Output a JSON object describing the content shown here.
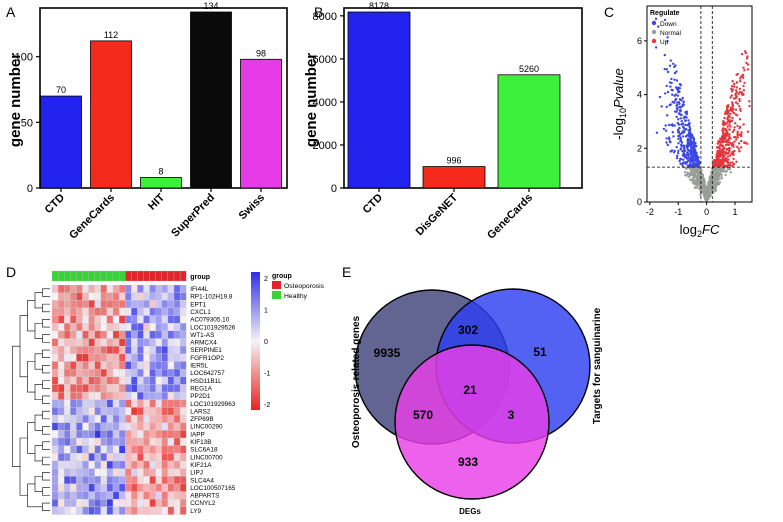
{
  "panel_letters": [
    "A",
    "B",
    "C",
    "D",
    "E"
  ],
  "chart_data": [
    {
      "panel": "A",
      "type": "bar",
      "ylabel": "gene number",
      "categories": [
        "CTD",
        "GeneCards",
        "HIT",
        "SuperPred",
        "Swiss"
      ],
      "values": [
        70,
        112,
        8,
        134,
        98
      ],
      "colors": [
        "#2323f0",
        "#f52a1c",
        "#3cf03c",
        "#0a0a0a",
        "#e83be8"
      ],
      "ylim": [
        0,
        134
      ],
      "yticks": [
        0,
        50,
        100
      ]
    },
    {
      "panel": "B",
      "type": "bar",
      "ylabel": "gene number",
      "categories": [
        "CTD",
        "DisGeNET",
        "GeneCards"
      ],
      "values": [
        8178,
        996,
        5260
      ],
      "colors": [
        "#2323f0",
        "#f52a1c",
        "#3cf03c"
      ],
      "ylim": [
        0,
        8178
      ],
      "yticks": [
        0,
        2000,
        4000,
        6000,
        8000
      ]
    },
    {
      "panel": "C",
      "type": "scatter",
      "xlabel": "log2FC",
      "ylabel": "-log10Pvalue",
      "xlim": [
        -2.1,
        1.6
      ],
      "ylim": [
        0,
        7.3
      ],
      "xticks": [
        -2,
        -1,
        0,
        1
      ],
      "yticks": [
        0,
        2,
        4,
        6
      ],
      "thresholds": {
        "x": [
          -0.2,
          0.2
        ],
        "y": 1.3
      },
      "legend": {
        "title": "Regulate",
        "entries": [
          {
            "label": "Down",
            "color": "#3b46e6"
          },
          {
            "label": "Normal",
            "color": "#9a9e9a"
          },
          {
            "label": "Up",
            "color": "#e6353b"
          }
        ]
      }
    },
    {
      "panel": "D",
      "type": "heatmap",
      "genes": [
        "IFI44L",
        "RP1-102H19.8",
        "EPT1",
        "CXCL1",
        "AC079305.10",
        "LOC101929526",
        "WT1-AS",
        "ARMCX4",
        "SERPINE1",
        "FGFR1OP2",
        "IER5L",
        "LOC642757",
        "HSD11B1L",
        "REG1A",
        "PP2D1",
        "LOC101929963",
        "LARS2",
        "ZFP69B",
        "LINC00290",
        "IAPP",
        "KIF13B",
        "SLC6A18",
        "LINC00700",
        "KIF21A",
        "LIPJ",
        "SLC4A4",
        "LOC100507165",
        "ABPARTS",
        "CCNYL2",
        "LY9"
      ],
      "group_label": "group",
      "groups": [
        {
          "label": "Osteoporosis",
          "color": "#e0262c",
          "samples": 10
        },
        {
          "label": "Healthy",
          "color": "#37d437",
          "samples": 12
        }
      ],
      "colorbar": {
        "ticks": [
          2,
          1,
          0,
          -1,
          -2
        ],
        "low": "#e8231f",
        "mid": "#f7f2f5",
        "high": "#2d2fe8"
      }
    },
    {
      "panel": "E",
      "type": "venn",
      "sets": [
        {
          "label": "Osteoporosis-related genes",
          "color": "#3f427a"
        },
        {
          "label": "Targets for sanguinarine",
          "color": "#2e3ff0"
        },
        {
          "label": "DEGs",
          "color": "#e83fe8"
        }
      ],
      "regions": {
        "only_osteo": 9935,
        "osteo_targets": 302,
        "only_targets": 51,
        "all_three": 21,
        "osteo_degs": 570,
        "targets_degs": 3,
        "only_degs": 933
      }
    }
  ]
}
